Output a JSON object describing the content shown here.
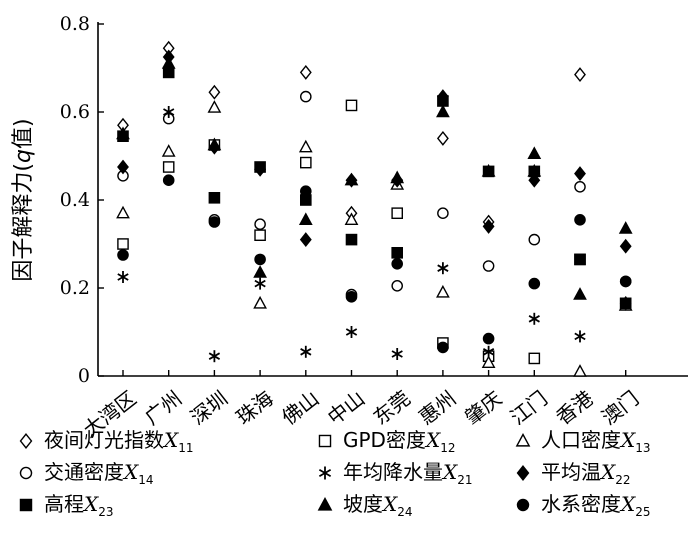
{
  "chart_data": {
    "type": "scatter",
    "ylabel_prefix": "因子解释力(",
    "ylabel_var": "q",
    "ylabel_suffix": "值)",
    "ylim": [
      0,
      0.8
    ],
    "yticks": [
      "0",
      "0.2",
      "0.4",
      "0.6",
      "0.8"
    ],
    "ytick_values": [
      0,
      0.2,
      0.4,
      0.6,
      0.8
    ],
    "grid": false,
    "legend_position": "bottom",
    "categories": [
      "大湾区",
      "广州",
      "深圳",
      "珠海",
      "佛山",
      "中山",
      "东莞",
      "惠州",
      "肇庆",
      "江门",
      "香港",
      "澳门"
    ],
    "series": [
      {
        "name": "夜间灯光指数",
        "var": "X",
        "sub": "11",
        "marker": "diamond-open",
        "values": [
          0.57,
          0.745,
          0.645,
          0.47,
          0.69,
          0.37,
          0.445,
          0.54,
          0.35,
          0.46,
          0.685,
          0.165
        ]
      },
      {
        "name": "GPD密度",
        "var": "X",
        "sub": "12",
        "marker": "square-open",
        "values": [
          0.3,
          0.475,
          0.525,
          0.32,
          0.485,
          0.615,
          0.37,
          0.075,
          0.045,
          0.04,
          0.265,
          0.165
        ]
      },
      {
        "name": "人口密度",
        "var": "X",
        "sub": "13",
        "marker": "triangle-open",
        "values": [
          0.37,
          0.51,
          0.61,
          0.165,
          0.52,
          0.355,
          0.435,
          0.19,
          0.03,
          0.465,
          0.01,
          0.16
        ]
      },
      {
        "name": "交通密度",
        "var": "X",
        "sub": "14",
        "marker": "circle-open",
        "values": [
          0.455,
          0.585,
          0.355,
          0.345,
          0.635,
          0.185,
          0.205,
          0.37,
          0.25,
          0.31,
          0.43,
          0.215
        ]
      },
      {
        "name": "年均降水量",
        "var": "X",
        "sub": "21",
        "marker": "asterisk",
        "values": [
          0.225,
          0.6,
          0.045,
          0.21,
          0.055,
          0.1,
          0.05,
          0.245,
          0.055,
          0.13,
          0.09,
          0.165
        ]
      },
      {
        "name": "平均温",
        "var": "X",
        "sub": "22",
        "marker": "diamond-filled",
        "values": [
          0.475,
          0.725,
          0.52,
          0.47,
          0.31,
          0.445,
          0.445,
          0.635,
          0.34,
          0.445,
          0.46,
          0.295
        ]
      },
      {
        "name": "高程",
        "var": "X",
        "sub": "23",
        "marker": "square-filled",
        "values": [
          0.545,
          0.69,
          0.405,
          0.475,
          0.4,
          0.31,
          0.28,
          0.625,
          0.465,
          0.465,
          0.265,
          0.165
        ]
      },
      {
        "name": "坡度",
        "var": "X",
        "sub": "24",
        "marker": "triangle-filled",
        "values": [
          0.55,
          0.71,
          0.525,
          0.235,
          0.355,
          0.445,
          0.45,
          0.6,
          0.465,
          0.505,
          0.185,
          0.335
        ]
      },
      {
        "name": "水系密度",
        "var": "X",
        "sub": "25",
        "marker": "circle-filled",
        "values": [
          0.275,
          0.445,
          0.35,
          0.265,
          0.42,
          0.18,
          0.255,
          0.065,
          0.085,
          0.21,
          0.355,
          0.215
        ]
      }
    ]
  }
}
